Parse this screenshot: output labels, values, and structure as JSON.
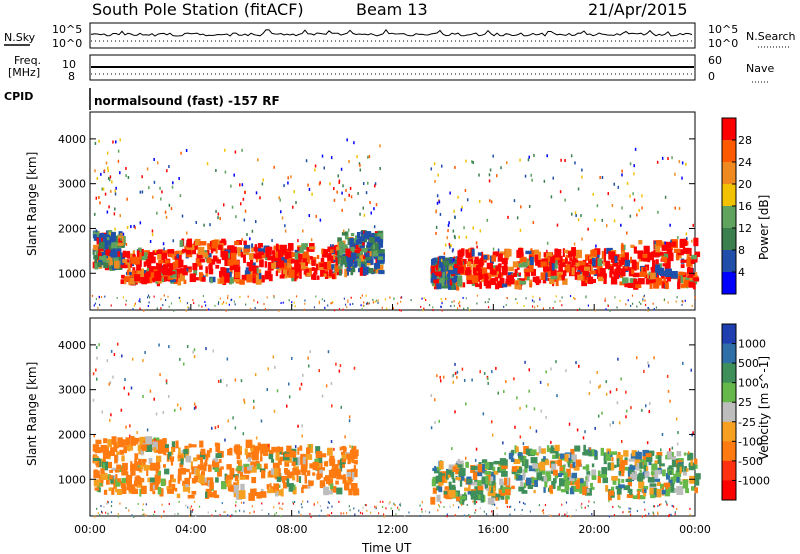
{
  "header": {
    "title": "South Pole Station (fitACF)",
    "beam": "Beam 13",
    "date": "21/Apr/2015"
  },
  "meta_panels": {
    "nsky_label": "N.Sky",
    "nsky_ticks_left": [
      "10^5",
      "10^0"
    ],
    "nsky_ticks_right": [
      "10^5",
      "10^0"
    ],
    "nsearch_label": "N.Search",
    "freq_label_line1": "Freq.",
    "freq_label_line2": "[MHz]",
    "freq_ticks_left": [
      "10",
      "8"
    ],
    "nave_ticks_right": [
      "60",
      "0"
    ],
    "nave_label": "Nave",
    "cpid_label": "CPID",
    "cpid_text": "normalsound (fast) -157 RF"
  },
  "colors": {
    "power_scale": [
      "#0000ff",
      "#1f4fa8",
      "#3b7f4f",
      "#5fa35f",
      "#f2c200",
      "#f08a20",
      "#ff5a00",
      "#ff0000"
    ],
    "velocity_scale": [
      "#1f3fb0",
      "#2f6fa8",
      "#3f8f5a",
      "#66b84a",
      "#bdbdbd",
      "#f5a020",
      "#ff7a10",
      "#ff3010",
      "#ff0000"
    ]
  },
  "chart_data": [
    {
      "type": "heatmap",
      "name_key": "power",
      "ylabel": "Slant Range [km]",
      "ylim": [
        180,
        4600
      ],
      "yticks": [
        "1000",
        "2000",
        "3000",
        "4000"
      ],
      "xlim": [
        "00:00",
        "24:00"
      ],
      "colorbar_label": "Power [dB]",
      "colorbar_ticks": [
        "4",
        "8",
        "12",
        "16",
        "20",
        "24",
        "28"
      ],
      "bands": [
        {
          "t0": 0.1,
          "t1": 1.2,
          "r0": 1100,
          "r1": 1900,
          "level": "medium"
        },
        {
          "t0": 1.2,
          "t1": 3.5,
          "r0": 800,
          "r1": 1500,
          "level": "high"
        },
        {
          "t0": 3.5,
          "t1": 6.8,
          "r0": 800,
          "r1": 1700,
          "level": "high"
        },
        {
          "t0": 6.8,
          "t1": 9.8,
          "r0": 900,
          "r1": 1600,
          "level": "high"
        },
        {
          "t0": 9.8,
          "t1": 11.5,
          "r0": 1000,
          "r1": 1900,
          "level": "medium"
        },
        {
          "t0": 13.5,
          "t1": 14.5,
          "r0": 700,
          "r1": 1300,
          "level": "medium"
        },
        {
          "t0": 14.5,
          "t1": 17.5,
          "r0": 700,
          "r1": 1500,
          "level": "high"
        },
        {
          "t0": 17.5,
          "t1": 21.0,
          "r0": 800,
          "r1": 1500,
          "level": "high"
        },
        {
          "t0": 21.0,
          "t1": 24.0,
          "r0": 700,
          "r1": 1700,
          "level": "high"
        }
      ]
    },
    {
      "type": "heatmap",
      "name_key": "velocity",
      "ylabel": "Slant Range [km]",
      "ylim": [
        180,
        4600
      ],
      "yticks": [
        "1000",
        "2000",
        "3000",
        "4000"
      ],
      "xlim": [
        "00:00",
        "24:00"
      ],
      "xticks": [
        "00:00",
        "04:00",
        "08:00",
        "12:00",
        "16:00",
        "20:00",
        "00:00"
      ],
      "xlabel": "Time UT",
      "colorbar_label": "Velocity [m s^-1]",
      "colorbar_ticks": [
        "1000",
        "500",
        "100",
        "25",
        "-25",
        "-100",
        "-500",
        "-1000"
      ],
      "bands": [
        {
          "t0": 0.1,
          "t1": 3.0,
          "r0": 700,
          "r1": 1900,
          "level": "negative"
        },
        {
          "t0": 3.0,
          "t1": 7.0,
          "r0": 600,
          "r1": 1800,
          "level": "negative"
        },
        {
          "t0": 7.0,
          "t1": 10.5,
          "r0": 700,
          "r1": 1700,
          "level": "negative"
        },
        {
          "t0": 13.5,
          "t1": 16.5,
          "r0": 500,
          "r1": 1400,
          "level": "mixed"
        },
        {
          "t0": 16.5,
          "t1": 20.5,
          "r0": 700,
          "r1": 1700,
          "level": "mixed"
        },
        {
          "t0": 20.5,
          "t1": 24.0,
          "r0": 600,
          "r1": 1600,
          "level": "mixed"
        }
      ]
    }
  ]
}
